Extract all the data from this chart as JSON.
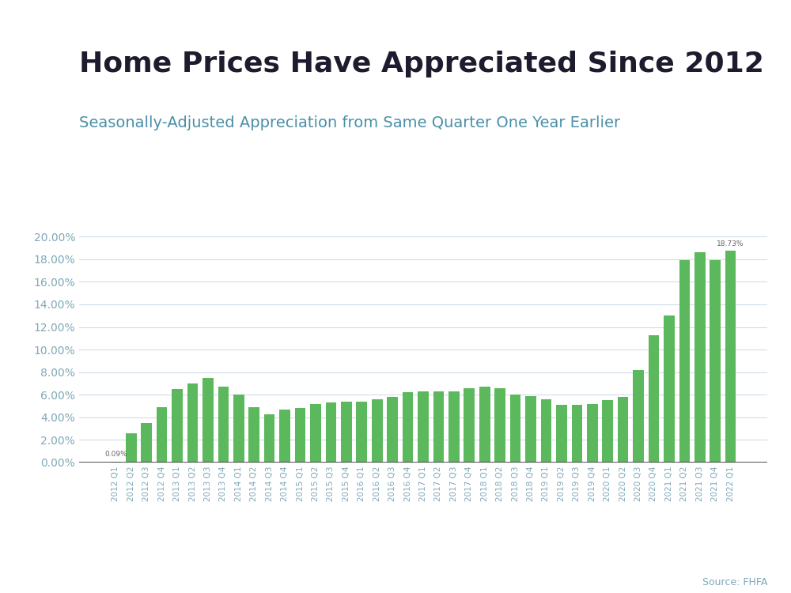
{
  "title": "Home Prices Have Appreciated Since 2012",
  "subtitle": "Seasonally-Adjusted Appreciation from Same Quarter One Year Earlier",
  "source": "Source: FHFA",
  "bar_color": "#5cb85c",
  "background_color": "#ffffff",
  "title_color": "#1c1c2e",
  "subtitle_color": "#4a8fa8",
  "ytick_color": "#7fa8b8",
  "grid_color": "#d0dde8",
  "top_bar_color": "#5bb8d4",
  "categories": [
    "2012 Q1",
    "2012 Q2",
    "2012 Q3",
    "2012 Q4",
    "2013 Q1",
    "2013 Q2",
    "2013 Q3",
    "2013 Q4",
    "2014 Q1",
    "2014 Q2",
    "2014 Q3",
    "2014 Q4",
    "2015 Q1",
    "2015 Q2",
    "2015 Q3",
    "2015 Q4",
    "2016 Q1",
    "2016 Q2",
    "2016 Q3",
    "2016 Q4",
    "2017 Q1",
    "2017 Q2",
    "2017 Q3",
    "2017 Q4",
    "2018 Q1",
    "2018 Q2",
    "2018 Q3",
    "2018 Q4",
    "2019 Q1",
    "2019 Q2",
    "2019 Q3",
    "2019 Q4",
    "2020 Q1",
    "2020 Q2",
    "2020 Q3",
    "2020 Q4",
    "2021 Q1",
    "2021 Q2",
    "2021 Q3",
    "2021 Q4",
    "2022 Q1"
  ],
  "values": [
    0.0009,
    0.026,
    0.035,
    0.049,
    0.065,
    0.07,
    0.075,
    0.067,
    0.06,
    0.049,
    0.043,
    0.047,
    0.048,
    0.052,
    0.053,
    0.054,
    0.054,
    0.056,
    0.058,
    0.062,
    0.063,
    0.063,
    0.063,
    0.066,
    0.067,
    0.066,
    0.06,
    0.059,
    0.056,
    0.051,
    0.051,
    0.052,
    0.055,
    0.058,
    0.082,
    0.113,
    0.13,
    0.179,
    0.186,
    0.179,
    0.1873
  ],
  "annotate_first": "0.09%",
  "annotate_last": "18.73%",
  "ylim": [
    0,
    0.21
  ],
  "yticks": [
    0.0,
    0.02,
    0.04,
    0.06,
    0.08,
    0.1,
    0.12,
    0.14,
    0.16,
    0.18,
    0.2
  ]
}
